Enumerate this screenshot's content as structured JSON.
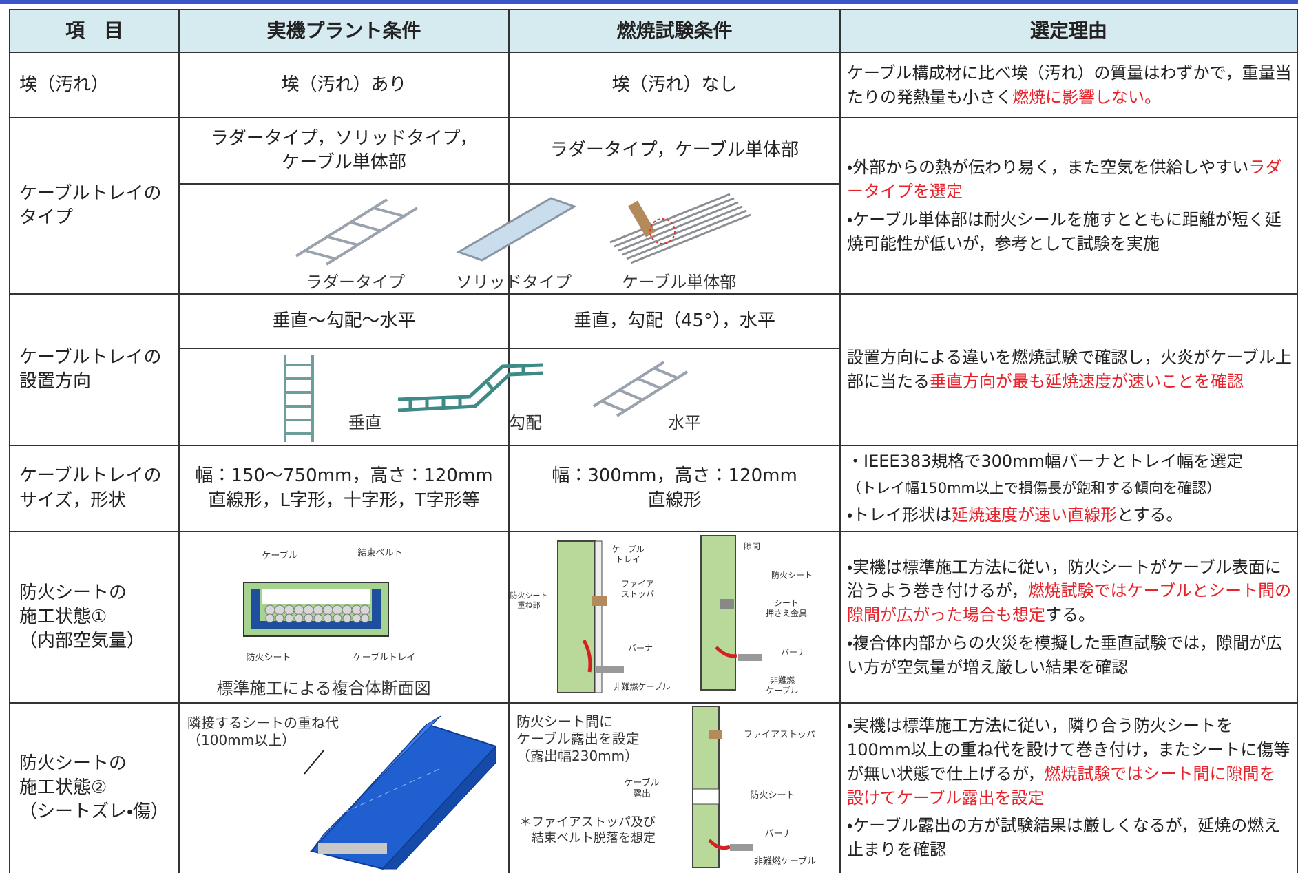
{
  "table": {
    "header": [
      "項　目",
      "実機プラント条件",
      "燃焼試験条件",
      "選定理由"
    ],
    "rows": [
      {
        "item": "埃（汚れ）",
        "plant": "埃（汚れ）あり",
        "test": "埃（汚れ）なし",
        "reason": [
          [
            {
              "text": "ケーブル構成材に比べ埃（汚れ）の質量はわずかで，重量当たりの発熱量も小さく"
            },
            {
              "text": "燃焼に影響しない。",
              "red": true
            }
          ]
        ]
      },
      {
        "item": "ケーブルトレイの\nタイプ",
        "plant": "ラダータイプ，ソリッドタイプ，\nケーブル単体部",
        "test": "ラダータイプ，ケーブル単体部",
        "figure_labels": [
          "ラダータイプ",
          "ソリッドタイプ",
          "ケーブル単体部"
        ],
        "reason": [
          [
            {
              "text": "・外部からの熱が伝わり易く，また空気を供給しやすい"
            },
            {
              "text": "ラダータイプを選定",
              "red": true
            }
          ],
          [
            {
              "text": "・ケーブル単体部は耐火シールを施すとともに距離が短く延焼可能性が低いが，参考として試験を実施"
            }
          ]
        ]
      },
      {
        "item": "ケーブルトレイの\n設置方向",
        "plant": "垂直～勾配～水平",
        "test": "垂直，勾配（45°），水平",
        "figure_labels": [
          "垂直",
          "勾配",
          "水平"
        ],
        "reason": [
          [
            {
              "text": "設置方向による違いを燃焼試験で確認し，火炎がケーブル上部に当たる"
            },
            {
              "text": "垂直方向が最も延焼速度が速いことを確認",
              "red": true
            }
          ]
        ]
      },
      {
        "item": "ケーブルトレイの\nサイズ，形状",
        "plant": "幅：150～750mm，高さ：120mm\n直線形，L字形，十字形，T字形等",
        "test": "幅：300mm，高さ：120mm\n直線形",
        "reason": [
          [
            {
              "text": "・IEEE383規格で300mm幅バーナとトレイ幅を選定"
            }
          ],
          [
            {
              "text": "（トレイ幅150mm以上で損傷長が飽和する傾向を確認）"
            }
          ],
          [
            {
              "text": "・トレイ形状は"
            },
            {
              "text": "延焼速度が速い直線形",
              "red": true
            },
            {
              "text": "とする。"
            }
          ]
        ]
      },
      {
        "item": "防火シートの\n施工状態①\n（内部空気量）",
        "plant_figure": [
          "ケーブル",
          "結束ベルト",
          "防火シート",
          "ケーブルトレイ",
          "標準施工による複合体断面図"
        ],
        "test_figure": [
          "ケーブル\nトレイ",
          "ファイア\nストッパ",
          "防火シート\n重ね部",
          "バーナ",
          "非難燃ケーブル",
          "隙間",
          "防火シート",
          "シート\n押さえ金具",
          "バーナ",
          "非難燃\nケーブル"
        ],
        "reason": [
          [
            {
              "text": "・実機は標準施工方法に従い，防火シートがケーブル表面に沿うよう巻き付けるが，"
            },
            {
              "text": "燃焼試験ではケーブルとシート間の隙間が広がった場合も想定",
              "red": true
            },
            {
              "text": "する。"
            }
          ],
          [
            {
              "text": "・複合体内部からの火災を模擬した垂直試験では，隙間が広い方が空気量が増え厳しい結果を確認"
            }
          ]
        ]
      },
      {
        "item": "防火シートの\n施工状態②\n（シートズレ・傷）",
        "plant_figure": [
          "隣接するシートの重ね代\n（100mm以上）"
        ],
        "test_figure": [
          "防火シート間に\nケーブル露出を設定\n（露出幅230mm）",
          "＊ファイアストッパ及び\n　結束ベルト脱落を想定",
          "ファイアストッパ",
          "ケーブル\n露出",
          "防火シート",
          "バーナ",
          "非難燃ケーブル"
        ],
        "reason": [
          [
            {
              "text": "・実機は標準施工方法に従い，隣り合う防火シートを100mm以上の重ね代を設けて巻き付け，またシートに傷等が無い状態で仕上げるが，"
            },
            {
              "text": "燃焼試験ではシート間に隙間を設けてケーブル露出を設定",
              "red": true
            }
          ],
          [
            {
              "text": "・ケーブル露出の方が試験結果は厳しくなるが，延焼の燃え止まりを確認"
            }
          ]
        ]
      }
    ]
  }
}
